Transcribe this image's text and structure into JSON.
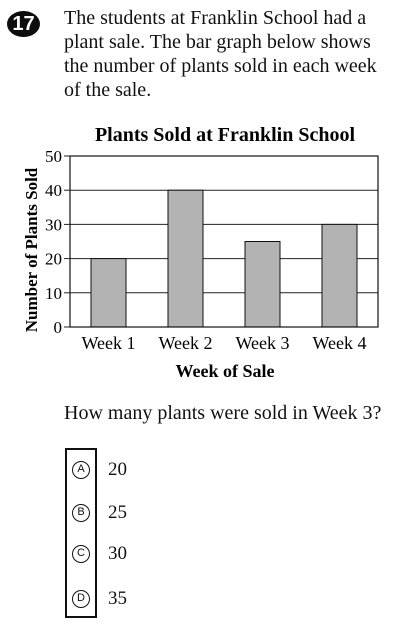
{
  "question_number": "17",
  "prompt": "The students at Franklin School had a plant sale. The bar graph below shows the number of plants sold in each week of the sale.",
  "question": "How many plants were sold in Week 3?",
  "choices": [
    {
      "letter": "A",
      "text": "20"
    },
    {
      "letter": "B",
      "text": "25"
    },
    {
      "letter": "C",
      "text": "30"
    },
    {
      "letter": "D",
      "text": "35"
    }
  ],
  "chart_data": {
    "type": "bar",
    "title": "Plants Sold at Franklin School",
    "xlabel": "Week of Sale",
    "ylabel": "Number of Plants Sold",
    "categories": [
      "Week 1",
      "Week 2",
      "Week 3",
      "Week 4"
    ],
    "values": [
      20,
      40,
      25,
      30
    ],
    "ylim": [
      0,
      50
    ],
    "yticks": [
      "0",
      "10",
      "20",
      "30",
      "40",
      "50"
    ],
    "grid": true,
    "bar_color": "#b3b3b3"
  }
}
